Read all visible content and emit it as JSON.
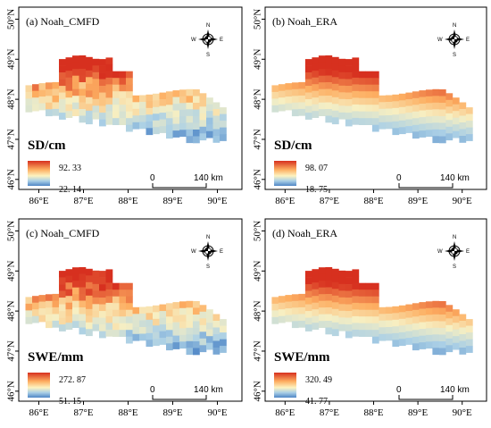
{
  "panels": [
    {
      "title": "(a) Noah_CMFD",
      "variable": "SD/cm",
      "legend_max": "92. 33",
      "legend_min": "22. 14",
      "pattern": "cmfd"
    },
    {
      "title": "(b) Noah_ERA",
      "variable": "SD/cm",
      "legend_max": "98. 07",
      "legend_min": "18. 75",
      "pattern": "era"
    },
    {
      "title": "(c) Noah_CMFD",
      "variable": "SWE/mm",
      "legend_max": "272. 87",
      "legend_min": "51. 15",
      "pattern": "cmfd"
    },
    {
      "title": "(d) Noah_ERA",
      "variable": "SWE/mm",
      "legend_max": "320. 49",
      "legend_min": "41. 77",
      "pattern": "era"
    }
  ],
  "axes": {
    "x_ticks": [
      "86°E",
      "87°E",
      "88°E",
      "89°E",
      "90°E"
    ],
    "y_ticks": [
      "50°N",
      "49°N",
      "48°N",
      "47°N",
      "46°N"
    ]
  },
  "compass": {
    "n": "N",
    "s": "S",
    "e": "E",
    "w": "W"
  },
  "scale_bar": {
    "start": "0",
    "end": "140 km"
  },
  "colors": {
    "high": "#d7301f",
    "mid": "#f7efc2",
    "low": "#5b8fc9"
  }
}
